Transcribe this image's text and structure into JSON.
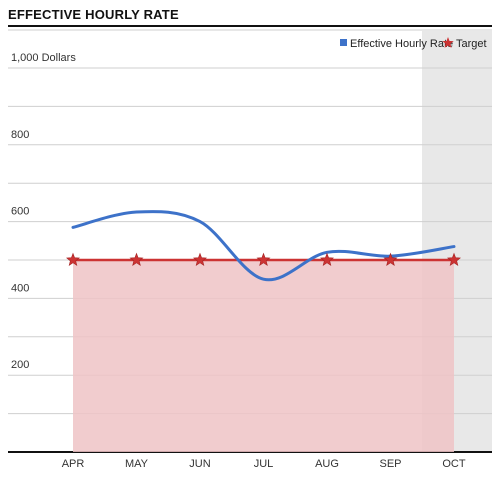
{
  "header": {
    "title": "EFFECTIVE HOURLY RATE"
  },
  "chart_data": {
    "type": "line",
    "title": "EFFECTIVE HOURLY RATE",
    "xlabel": "",
    "ylabel": "",
    "categories": [
      "APR",
      "MAY",
      "JUN",
      "JUL",
      "AUG",
      "SEP",
      "OCT"
    ],
    "series": [
      {
        "name": "Effective Hourly Rate",
        "type": "line",
        "color": "#3d72c9",
        "values": [
          585,
          625,
          600,
          450,
          520,
          510,
          535
        ]
      },
      {
        "name": "Target",
        "type": "area",
        "marker": "star",
        "color": "#cc3333",
        "fill": "#eec3c6",
        "values": [
          500,
          500,
          500,
          500,
          500,
          500,
          500
        ]
      }
    ],
    "ylim": [
      0,
      1000
    ],
    "yticks": [
      {
        "value": 200,
        "label": "200"
      },
      {
        "value": 400,
        "label": "400"
      },
      {
        "value": 600,
        "label": "600"
      },
      {
        "value": 800,
        "label": "800"
      },
      {
        "value": 1000,
        "label": "1,000 Dollars"
      }
    ],
    "highlight_category": "OCT",
    "highlight_color": "#e8e8e8",
    "grid": true,
    "legend_position": "top-right"
  }
}
